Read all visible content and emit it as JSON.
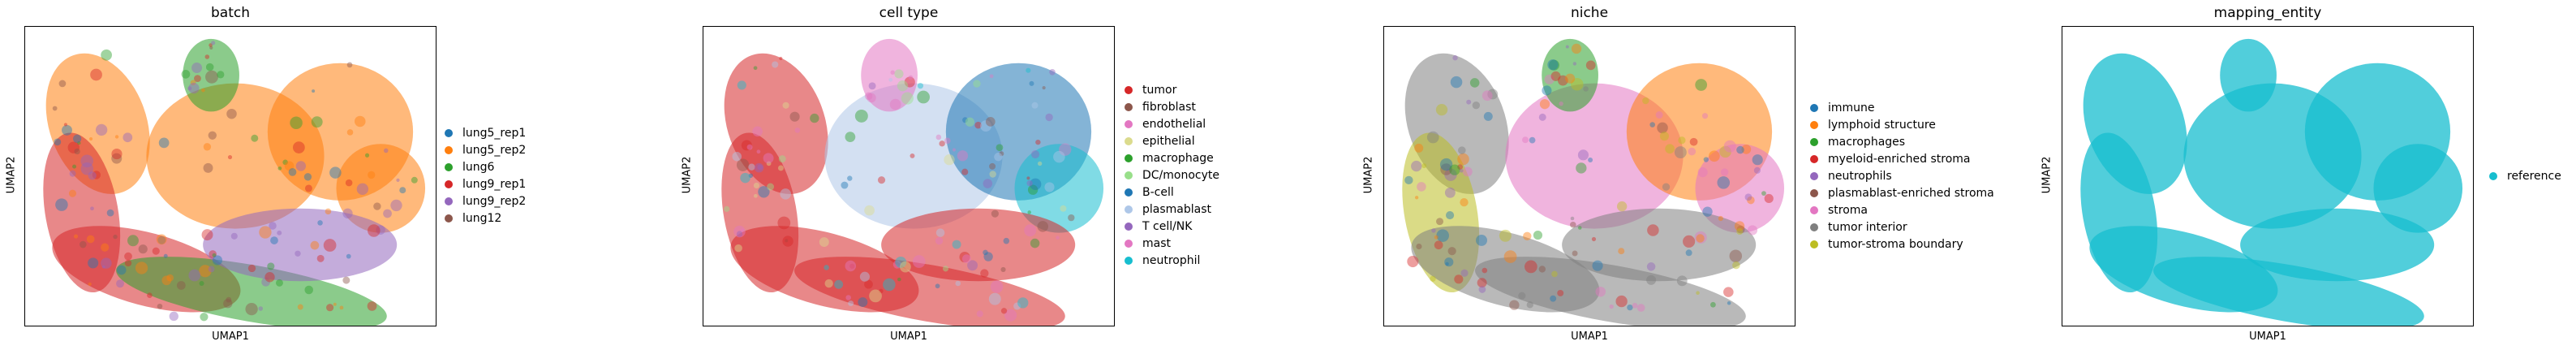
{
  "chart_data": [
    {
      "type": "scatter",
      "title": "batch",
      "xlabel": "UMAP1",
      "ylabel": "UMAP2",
      "legend_position": "right",
      "series": [
        {
          "name": "lung5_rep1",
          "color": "#1f77b4"
        },
        {
          "name": "lung5_rep2",
          "color": "#ff7f0e"
        },
        {
          "name": "lung6",
          "color": "#2ca02c"
        },
        {
          "name": "lung9_rep1",
          "color": "#d62728"
        },
        {
          "name": "lung9_rep2",
          "color": "#9467bd"
        },
        {
          "name": "lung12",
          "color": "#8c564b"
        }
      ]
    },
    {
      "type": "scatter",
      "title": "cell type",
      "xlabel": "UMAP1",
      "ylabel": "UMAP2",
      "legend_position": "right",
      "series": [
        {
          "name": "tumor",
          "color": "#d62728"
        },
        {
          "name": "fibroblast",
          "color": "#8c564b"
        },
        {
          "name": "endothelial",
          "color": "#e377c2"
        },
        {
          "name": "epithelial",
          "color": "#dbdb8d"
        },
        {
          "name": "macrophage",
          "color": "#2ca02c"
        },
        {
          "name": "DC/monocyte",
          "color": "#98df8a"
        },
        {
          "name": "B-cell",
          "color": "#1f77b4"
        },
        {
          "name": "plasmablast",
          "color": "#aec7e8"
        },
        {
          "name": "T cell/NK",
          "color": "#9467bd"
        },
        {
          "name": "mast",
          "color": "#e377c2"
        },
        {
          "name": "neutrophil",
          "color": "#17becf"
        }
      ]
    },
    {
      "type": "scatter",
      "title": "niche",
      "xlabel": "UMAP1",
      "ylabel": "UMAP2",
      "legend_position": "right",
      "series": [
        {
          "name": "immune",
          "color": "#1f77b4"
        },
        {
          "name": "lymphoid structure",
          "color": "#ff7f0e"
        },
        {
          "name": "macrophages",
          "color": "#2ca02c"
        },
        {
          "name": "myeloid-enriched stroma",
          "color": "#d62728"
        },
        {
          "name": "neutrophils",
          "color": "#9467bd"
        },
        {
          "name": "plasmablast-enriched stroma",
          "color": "#8c564b"
        },
        {
          "name": "stroma",
          "color": "#e377c2"
        },
        {
          "name": "tumor interior",
          "color": "#7f7f7f"
        },
        {
          "name": "tumor-stroma boundary",
          "color": "#bcbd22"
        }
      ]
    },
    {
      "type": "scatter",
      "title": "mapping_entity",
      "xlabel": "UMAP1",
      "ylabel": "UMAP2",
      "legend_position": "right",
      "series": [
        {
          "name": "reference",
          "color": "#17becf"
        }
      ]
    }
  ]
}
